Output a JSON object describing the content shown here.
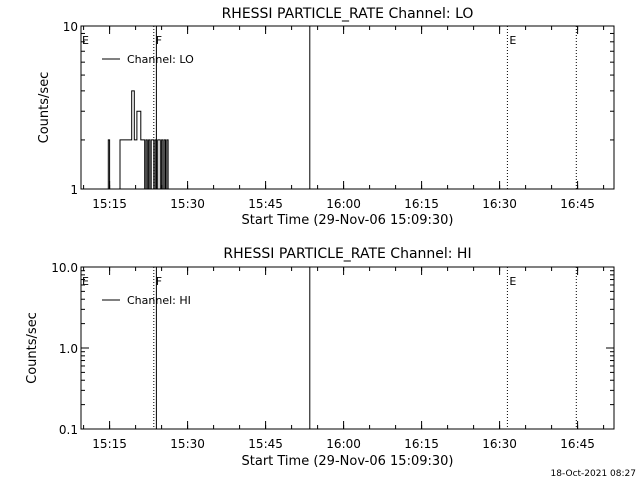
{
  "footer": {
    "timestamp": "18-Oct-2021 08:27"
  },
  "chart_data": [
    {
      "type": "line",
      "title": "RHESSI PARTICLE_RATE Channel: LO",
      "xlabel": "Start Time (29-Nov-06 15:09:30)",
      "ylabel": "Counts/sec",
      "y_scale": "log",
      "xlim": [
        "15:09:30",
        "16:52:00"
      ],
      "ylim": [
        1,
        10
      ],
      "x_ticks": [
        "15:15",
        "15:30",
        "15:45",
        "16:00",
        "16:15",
        "16:30",
        "16:45"
      ],
      "y_ticks": [
        "1",
        "10"
      ],
      "legend": {
        "placement": "top-left",
        "entries": [
          "Channel: LO"
        ]
      },
      "flags": [
        {
          "label": "E",
          "time": "15:09:30",
          "style": "none"
        },
        {
          "label": "F",
          "time": "15:23:30",
          "style": "dotted"
        },
        {
          "label": "",
          "time": "15:24:00",
          "style": "solid"
        },
        {
          "label": "",
          "time": "15:53:30",
          "style": "solid"
        },
        {
          "label": "E",
          "time": "16:31:30",
          "style": "dotted"
        },
        {
          "label": "",
          "time": "16:44:45",
          "style": "dotted"
        }
      ],
      "series": [
        {
          "name": "Channel: LO",
          "times": [
            "15:14:30",
            "15:14:45",
            "15:15:00",
            "15:16:45",
            "15:17:00",
            "15:17:15",
            "15:18:30",
            "15:19:15",
            "15:19:45",
            "15:20:15",
            "15:21:00",
            "15:21:15",
            "15:21:45",
            "15:22:00",
            "15:22:15",
            "15:22:30",
            "15:22:45",
            "15:23:00",
            "15:23:15",
            "15:23:30",
            "15:23:45",
            "15:24:00",
            "15:24:15",
            "15:24:30",
            "15:24:45",
            "15:25:00",
            "15:25:15",
            "15:25:30",
            "15:25:45",
            "15:26:00",
            "15:26:15"
          ],
          "values": [
            1,
            2,
            1,
            1,
            2,
            2,
            2,
            4,
            2,
            3,
            2,
            2,
            1,
            2,
            1,
            2,
            1,
            2,
            2,
            1,
            2,
            1,
            2,
            2,
            1,
            2,
            1,
            2,
            1,
            2,
            1
          ]
        }
      ]
    },
    {
      "type": "line",
      "title": "RHESSI PARTICLE_RATE Channel: HI",
      "xlabel": "Start Time (29-Nov-06 15:09:30)",
      "ylabel": "Counts/sec",
      "y_scale": "log",
      "xlim": [
        "15:09:30",
        "16:52:00"
      ],
      "ylim": [
        0.1,
        10
      ],
      "x_ticks": [
        "15:15",
        "15:30",
        "15:45",
        "16:00",
        "16:15",
        "16:30",
        "16:45"
      ],
      "y_ticks": [
        "0.1",
        "1.0",
        "10.0"
      ],
      "legend": {
        "placement": "top-left",
        "entries": [
          "Channel: HI"
        ]
      },
      "flags": [
        {
          "label": "E",
          "time": "15:09:30",
          "style": "none"
        },
        {
          "label": "F",
          "time": "15:23:30",
          "style": "dotted"
        },
        {
          "label": "",
          "time": "15:24:00",
          "style": "solid"
        },
        {
          "label": "",
          "time": "15:53:30",
          "style": "solid"
        },
        {
          "label": "E",
          "time": "16:31:30",
          "style": "dotted"
        },
        {
          "label": "",
          "time": "16:44:45",
          "style": "dotted"
        }
      ],
      "series": [
        {
          "name": "Channel: HI",
          "times": [],
          "values": []
        }
      ]
    }
  ]
}
